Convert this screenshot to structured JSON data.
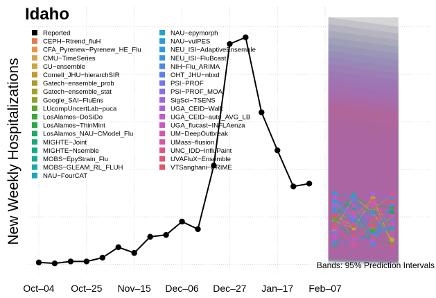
{
  "chart_data": {
    "type": "line",
    "title": "Idaho",
    "ylabel": "New Weekly Hospitalizations",
    "xlabel": "",
    "annotation": "Bands: 95% Prediction Intervals",
    "x_tick_labels": [
      "Oct–04",
      "Oct–25",
      "Nov–15",
      "Dec–06",
      "Dec–27",
      "Jan–17",
      "Feb–07"
    ],
    "x_tick_week_index": [
      0,
      3,
      6,
      9,
      12,
      15,
      18
    ],
    "grid": true,
    "legend_position": "top-left",
    "reported": {
      "name": "Reported",
      "values": [
        2,
        1,
        3,
        3,
        7,
        18,
        12,
        29,
        31,
        45,
        37,
        104,
        232,
        239,
        160,
        120,
        82,
        85
      ]
    },
    "ylim": [
      -4,
      260
    ],
    "forecast": {
      "week_index_range": [
        18.2,
        22.6
      ],
      "band_color": "#cfcfcf",
      "band_upper_max": 260,
      "band_lower_min": 0,
      "points_range": [
        20,
        75
      ]
    },
    "legend": [
      {
        "name": "Reported",
        "color": "#000000"
      },
      {
        "name": "CEPH−Rtrend_fluH",
        "color": "#e07b4c"
      },
      {
        "name": "CFA_Pyrenew−Pyrenew_HE_Flu",
        "color": "#e8944a"
      },
      {
        "name": "CMU−TimeSeries",
        "color": "#d9a14b"
      },
      {
        "name": "CU−ensemble",
        "color": "#c9a640"
      },
      {
        "name": "Cornell_JHU−hierarchSIR",
        "color": "#bf9a35"
      },
      {
        "name": "Gatech−ensemble_prob",
        "color": "#ad9a2e"
      },
      {
        "name": "Gatech−ensemble_stat",
        "color": "#a3a126"
      },
      {
        "name": "Google_SAI−FluEns",
        "color": "#8ea326"
      },
      {
        "name": "LUcompUncertLab−puca",
        "color": "#5ba62e"
      },
      {
        "name": "LosAlamos−DoSiDo",
        "color": "#3da73a"
      },
      {
        "name": "LosAlamos−ThinMint",
        "color": "#2aa64c"
      },
      {
        "name": "LosAlamos_NAU−CModel_Flu",
        "color": "#1ea760"
      },
      {
        "name": "MIGHTE−Joint",
        "color": "#1aa874"
      },
      {
        "name": "MIGHTE−Nsemble",
        "color": "#19a986"
      },
      {
        "name": "MOBS−EpyStrain_Flu",
        "color": "#1aa99a"
      },
      {
        "name": "MOBS−GLEAM_RL_FLUH",
        "color": "#1ca8ac"
      },
      {
        "name": "NAU−FourCAT",
        "color": "#1fa6bd"
      },
      {
        "name": "NAU−epymorph",
        "color": "#22a3cc"
      },
      {
        "name": "NAU−vulPES",
        "color": "#27a0d8"
      },
      {
        "name": "NEU_ISI−AdaptiveEnsemble",
        "color": "#2f9ae0"
      },
      {
        "name": "NEU_ISI−FluBcast",
        "color": "#3b93e6"
      },
      {
        "name": "NIH−Flu_ARIMA",
        "color": "#4b8ae9"
      },
      {
        "name": "OHT_JHU−nbxd",
        "color": "#5e80ea"
      },
      {
        "name": "PSI−PROF",
        "color": "#7476ea"
      },
      {
        "name": "PSI−PROF_MOA",
        "color": "#8a6de6"
      },
      {
        "name": "SigSci−TSENS",
        "color": "#9e65df"
      },
      {
        "name": "UGA_CEID−Walk",
        "color": "#b05fd6"
      },
      {
        "name": "UGA_CEID−auto_AVG_LB",
        "color": "#bf5bcb"
      },
      {
        "name": "UGA_flucast−INFLAenza",
        "color": "#cb58bd"
      },
      {
        "name": "UM−DeepOutbreak",
        "color": "#d456ae"
      },
      {
        "name": "UMass−flusion",
        "color": "#da559e"
      },
      {
        "name": "UNC_IDD−InfluPaint",
        "color": "#de558c"
      },
      {
        "name": "UVAFluX−Ensemble",
        "color": "#df567a"
      },
      {
        "name": "VTSanghani−PRIME",
        "color": "#de5866"
      }
    ]
  }
}
